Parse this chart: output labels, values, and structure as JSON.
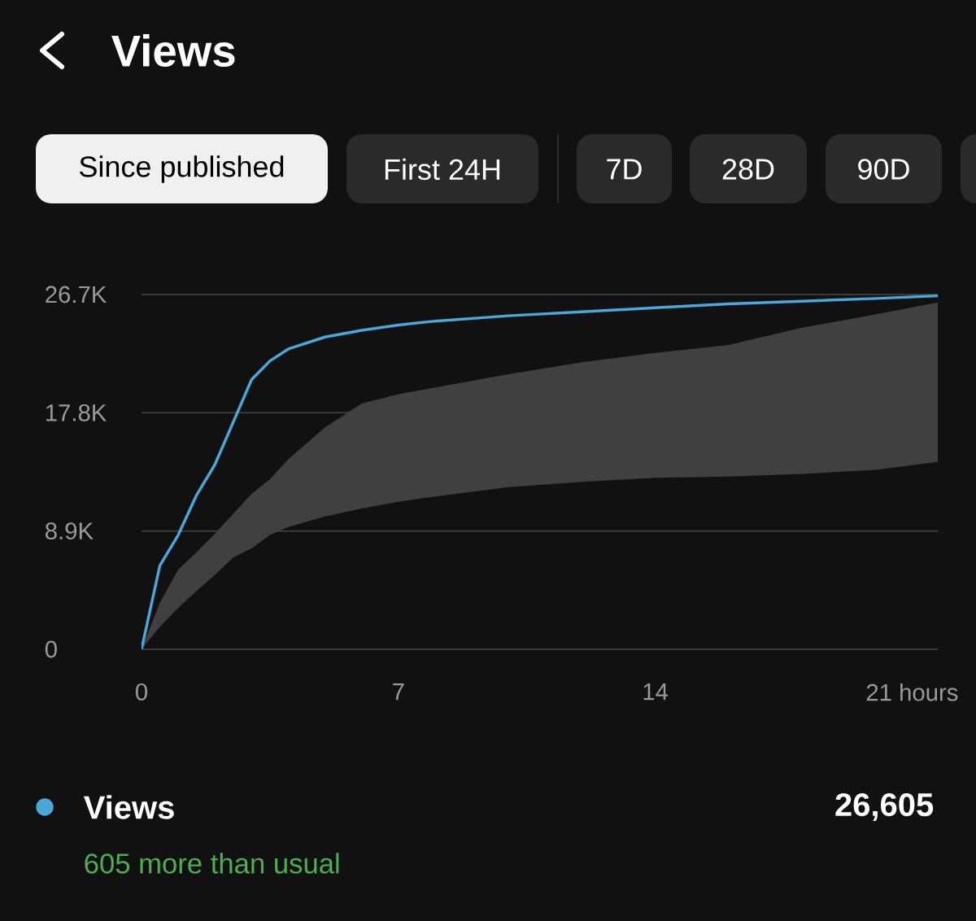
{
  "chart_data": {
    "type": "line",
    "title": "Views",
    "x": [
      0,
      0.5,
      1,
      1.5,
      2,
      2.5,
      3,
      3.5,
      4,
      5,
      6,
      7,
      8,
      10,
      12,
      14,
      16,
      18,
      20,
      21.7
    ],
    "series": [
      {
        "name": "Views",
        "color": "#4aa8d8",
        "values": [
          0,
          6300,
          8600,
          11600,
          13900,
          17100,
          20300,
          21700,
          22600,
          23500,
          24000,
          24400,
          24700,
          25100,
          25400,
          25700,
          26000,
          26200,
          26400,
          26600
        ],
        "lower": [
          0,
          1700,
          3100,
          4400,
          5600,
          6900,
          7600,
          8600,
          9200,
          10000,
          10600,
          11100,
          11500,
          12200,
          12600,
          12900,
          13000,
          13200,
          13500,
          14100
        ],
        "upper": [
          0,
          3500,
          6000,
          7300,
          8700,
          10200,
          11700,
          12800,
          14300,
          16700,
          18500,
          19200,
          19700,
          20700,
          21600,
          22300,
          22900,
          24200,
          25200,
          26100
        ]
      }
    ],
    "xlim": [
      0,
      21.7
    ],
    "ylim": [
      0,
      26700
    ],
    "xticks": [
      0,
      7,
      14,
      {
        "value": 21,
        "label": "21 hours"
      }
    ],
    "yticks": [
      0,
      {
        "value": 8900,
        "label": "8.9K"
      },
      {
        "value": 17800,
        "label": "17.8K"
      },
      {
        "value": 26700,
        "label": "26.7K"
      }
    ],
    "grid": "y",
    "legend": "bottom",
    "annotations": [
      "Since published",
      "First 24H",
      "7D",
      "28D",
      "90D",
      "26,605",
      "605 more than usual"
    ]
  }
}
